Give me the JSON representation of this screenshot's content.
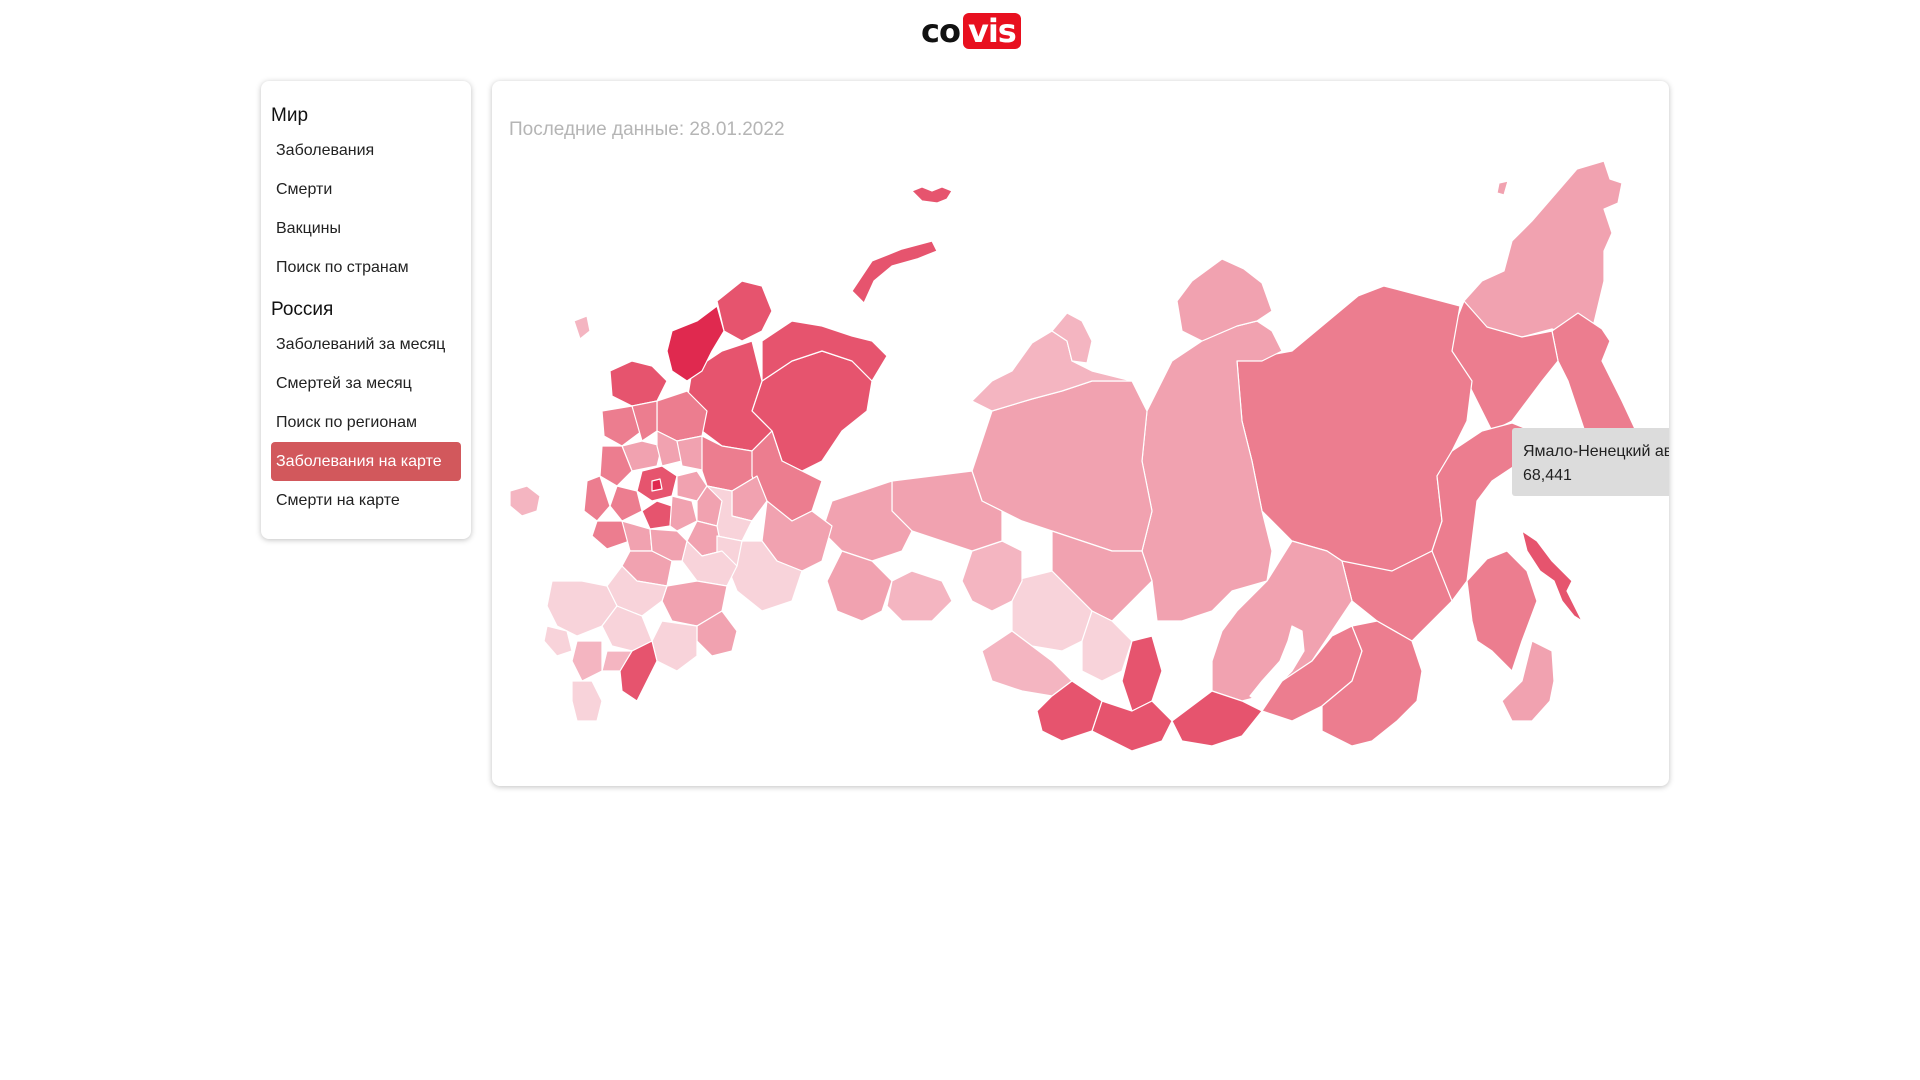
{
  "logo": {
    "part1": "co",
    "part2": "vis"
  },
  "sidebar": {
    "world_heading": "Мир",
    "world_items": [
      "Заболевания",
      "Смерти",
      "Вакцины",
      "Поиск по странам"
    ],
    "russia_heading": "Россия",
    "russia_items": [
      "Заболеваний за месяц",
      "Смертей за месяц",
      "Поиск по регионам",
      "Заболевания на карте",
      "Смерти на карте"
    ],
    "active_item": "Заболевания на карте"
  },
  "main": {
    "last_data": "Последние данные: 28.01.2022"
  },
  "tooltip": {
    "region": "Ямало-Ненецкий автономный округ",
    "value": "68,441"
  },
  "colors": {
    "accent": "#e8101f",
    "active_nav": "#d2585c",
    "map_darkest": "#e0294f",
    "map_dark": "#e6546e",
    "map_mid": "#ec7d8f",
    "map_light": "#f1a2b0",
    "map_lightest": "#f8d3da"
  }
}
